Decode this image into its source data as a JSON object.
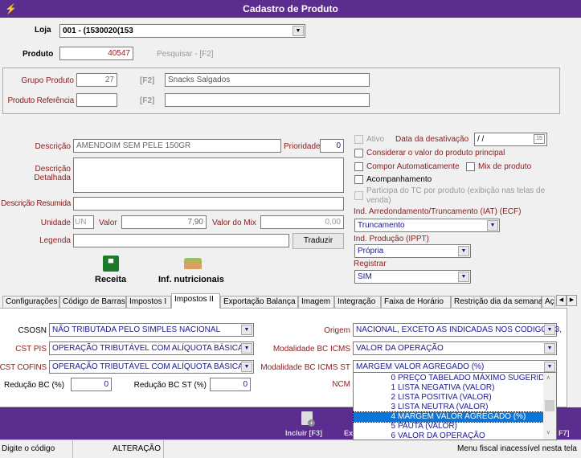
{
  "window": {
    "title": "Cadastro de Produto"
  },
  "header": {
    "loja_label": "Loja",
    "loja_value": "001 - (1530020(153",
    "produto_label": "Produto",
    "produto_value": "40547",
    "pesquisar": "Pesquisar - [F2]"
  },
  "group": {
    "grupo_label": "Grupo Produto",
    "grupo_code": "27",
    "f2": "[F2]",
    "grupo_name": "Snacks Salgados",
    "ref_label": "Produto Referência",
    "ref_code": "",
    "ref_name": ""
  },
  "form": {
    "descricao_label": "Descrição",
    "descricao_value": "AMENDOIM SEM PELE 150GR",
    "prioridade_label": "Prioridade",
    "prioridade_value": "0",
    "detalhada_label1": "Descrição",
    "detalhada_label2": "Detalhada",
    "resumida_label": "Descrição Resumida",
    "unidade_label": "Unidade",
    "unidade_value": "UN",
    "valor_label": "Valor",
    "valor_value": "7,90",
    "mix_label": "Valor do Mix",
    "mix_value": "0,00",
    "legenda_label": "Legenda",
    "traduzir": "Traduzir",
    "receita": "Receita",
    "nutricionais": "Inf. nutricionais"
  },
  "options": {
    "ativo": "Ativo",
    "data_desativacao_label": "Data da desativação",
    "data_desativacao_value": "/ /",
    "considerar": "Considerar o valor do produto principal",
    "compor": "Compor Automaticamente",
    "mix": "Mix de produto",
    "acompanhamento": "Acompanhamento",
    "participa": "Participa do TC por produto (exibição nas telas de venda)",
    "iat_label": "Ind. Arredondamento/Truncamento (IAT) (ECF)",
    "iat_value": "Truncamento",
    "ippt_label": "Ind. Produção (IPPT)",
    "ippt_value": "Própria",
    "registrar_label": "Registrar",
    "registrar_value": "SIM"
  },
  "tabs": [
    "Configurações",
    "Código de Barras",
    "Impostos I",
    "Impostos II",
    "Exportação Balança",
    "Imagem",
    "Integração",
    "Faixa de Horário",
    "Restrição dia da semana",
    "Aç"
  ],
  "impostos": {
    "csosn_label": "CSOSN",
    "csosn_value": "NÃO TRIBUTADA PELO SIMPLES NACIONAL",
    "pis_label": "CST PIS",
    "pis_value": "OPERAÇÃO TRIBUTÁVEL COM ALÍQUOTA BÁSICA",
    "cofins_label": "CST COFINS",
    "cofins_value": "OPERAÇÃO TRIBUTÁVEL COM ALÍQUOTA BÁSICA",
    "red_bc_label": "Redução BC (%)",
    "red_bc_value": "0",
    "red_bc_st_label": "Redução BC ST (%)",
    "red_bc_st_value": "0",
    "origem_label": "Origem",
    "origem_value": "NACIONAL, EXCETO AS INDICADAS NOS CODIGOS 3,",
    "mod_icms_label": "Modalidade BC ICMS",
    "mod_icms_value": "VALOR DA OPERAÇÃO",
    "mod_st_label": "Modalidade BC ICMS ST",
    "mod_st_value": "MARGEM VALOR AGREGADO (%)",
    "ncm_label": "NCM"
  },
  "dropdown": [
    {
      "n": "0",
      "t": "PREÇO TABELADO MÁXIMO SUGERIDO"
    },
    {
      "n": "1",
      "t": "LISTA NEGATIVA (VALOR)"
    },
    {
      "n": "2",
      "t": "LISTA POSITIVA (VALOR)"
    },
    {
      "n": "3",
      "t": "LISTA NEUTRA (VALOR)"
    },
    {
      "n": "4",
      "t": "MARGEM VALOR AGREGADO (%)"
    },
    {
      "n": "5",
      "t": "PAUTA (VALOR)"
    },
    {
      "n": "6",
      "t": "VALOR DA OPERAÇÃO"
    }
  ],
  "toolbar": {
    "incluir": "Incluir [F3]",
    "ex": "Ex",
    "f7": "F7]"
  },
  "status": {
    "left": "Digite o código",
    "mode": "ALTERAÇÃO",
    "right": "Menu fiscal inacessível nesta tela"
  },
  "colors": {
    "brand": "#5b2d8e",
    "label": "#8b1a1a",
    "value": "#1a1a8b",
    "selection": "#0a74d8"
  }
}
